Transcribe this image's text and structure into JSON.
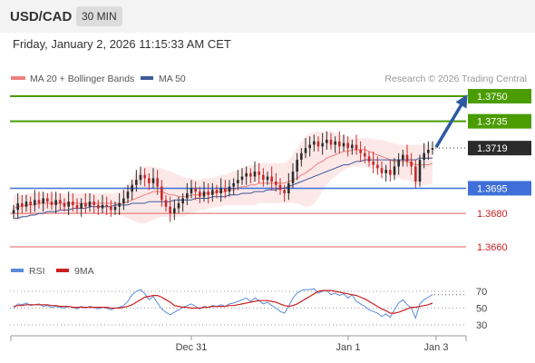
{
  "header": {
    "symbol": "USD/CAD",
    "timeframe": "30 MIN"
  },
  "datetime": "Friday, January 2, 2026 11:15:33 AM CET",
  "legend": {
    "ma20": "MA 20 + Bollinger Bands",
    "ma50": "MA 50",
    "credit": "Research © 2026 Trading Central"
  },
  "rsi_legend": {
    "rsi": "RSI",
    "ma": "9MA"
  },
  "colors": {
    "up": "#2b2b2b",
    "down": "#c62828",
    "ma20": "#f08080",
    "bands": "#fde4e4",
    "ma50": "#3d5a99",
    "resistance": "#4a9c00",
    "support_blue": "#3f6fd8",
    "support_red": "#e06060",
    "rsi": "#5b8bd9",
    "rsi_ma": "#cc2020",
    "arrow": "#2c5aa0"
  },
  "chart_data": {
    "type": "candlestick",
    "x_ticks": [
      "Dec 31",
      "Jan 1",
      "Jan 3"
    ],
    "y_range": [
      1.365,
      1.376
    ],
    "levels": [
      {
        "label": "1.3750",
        "value": 1.375,
        "type": "resistance"
      },
      {
        "label": "1.3735",
        "value": 1.3735,
        "type": "resistance"
      },
      {
        "label": "1.3719",
        "value": 1.3719,
        "type": "last"
      },
      {
        "label": "1.3695",
        "value": 1.3695,
        "type": "pivot"
      },
      {
        "label": "1.3680",
        "value": 1.368,
        "type": "support"
      },
      {
        "label": "1.3660",
        "value": 1.366,
        "type": "support"
      }
    ],
    "close": [
      1.3682,
      1.3686,
      1.3684,
      1.3687,
      1.3685,
      1.3688,
      1.3686,
      1.3689,
      1.3687,
      1.3685,
      1.3688,
      1.3686,
      1.3684,
      1.3687,
      1.3685,
      1.3683,
      1.3686,
      1.3684,
      1.3687,
      1.3685,
      1.3683,
      1.3685,
      1.3684,
      1.3682,
      1.3684,
      1.3686,
      1.3689,
      1.3693,
      1.3697,
      1.37,
      1.3703,
      1.3701,
      1.3698,
      1.3701,
      1.3696,
      1.3688,
      1.3684,
      1.368,
      1.3683,
      1.3686,
      1.3689,
      1.3692,
      1.3695,
      1.3693,
      1.369,
      1.3693,
      1.3691,
      1.3694,
      1.3692,
      1.3695,
      1.3693,
      1.3696,
      1.3698,
      1.37,
      1.3702,
      1.3704,
      1.3702,
      1.3705,
      1.3703,
      1.37,
      1.3702,
      1.3699,
      1.3697,
      1.3694,
      1.3692,
      1.3698,
      1.3705,
      1.3712,
      1.3716,
      1.3719,
      1.3721,
      1.3723,
      1.372,
      1.3722,
      1.3724,
      1.3721,
      1.3723,
      1.372,
      1.3722,
      1.3719,
      1.3721,
      1.3718,
      1.3716,
      1.3714,
      1.3711,
      1.3709,
      1.3707,
      1.3704,
      1.3706,
      1.3703,
      1.3708,
      1.3712,
      1.3715,
      1.3711,
      1.3708,
      1.3699,
      1.3712,
      1.3716,
      1.3718,
      1.3719
    ],
    "ma20": [
      1.3683,
      1.3684,
      1.3684,
      1.3685,
      1.3685,
      1.3685,
      1.3686,
      1.3686,
      1.3686,
      1.3686,
      1.3686,
      1.3686,
      1.3686,
      1.3686,
      1.3686,
      1.3686,
      1.3686,
      1.3686,
      1.3686,
      1.3686,
      1.3686,
      1.3686,
      1.3686,
      1.3686,
      1.3686,
      1.3686,
      1.3686,
      1.3687,
      1.3688,
      1.3689,
      1.369,
      1.3691,
      1.3692,
      1.3693,
      1.3693,
      1.3693,
      1.3692,
      1.3691,
      1.3691,
      1.369,
      1.369,
      1.369,
      1.3691,
      1.3691,
      1.3691,
      1.3692,
      1.3692,
      1.3692,
      1.3693,
      1.3693,
      1.3693,
      1.3694,
      1.3694,
      1.3695,
      1.3696,
      1.3696,
      1.3697,
      1.3697,
      1.3698,
      1.3698,
      1.3698,
      1.3698,
      1.3698,
      1.3698,
      1.3698,
      1.3699,
      1.37,
      1.3701,
      1.3703,
      1.3704,
      1.3706,
      1.3708,
      1.371,
      1.3711,
      1.3713,
      1.3714,
      1.3715,
      1.3716,
      1.3717,
      1.3717,
      1.3718,
      1.3718,
      1.3718,
      1.3718,
      1.3717,
      1.3716,
      1.3715,
      1.3714,
      1.3713,
      1.3712,
      1.3711,
      1.3711,
      1.3711,
      1.3711,
      1.371,
      1.3709,
      1.3709,
      1.3709,
      1.3709,
      1.371
    ],
    "band_upper": [
      1.3691,
      1.3691,
      1.3691,
      1.3692,
      1.3692,
      1.3692,
      1.3692,
      1.3692,
      1.3692,
      1.3692,
      1.3692,
      1.3692,
      1.3692,
      1.3692,
      1.3692,
      1.3692,
      1.3692,
      1.3692,
      1.3692,
      1.3692,
      1.3692,
      1.3692,
      1.3692,
      1.3692,
      1.3692,
      1.3693,
      1.3695,
      1.3698,
      1.3701,
      1.3704,
      1.3707,
      1.3708,
      1.3708,
      1.3708,
      1.3707,
      1.3707,
      1.3706,
      1.3705,
      1.3704,
      1.3703,
      1.3702,
      1.3701,
      1.3701,
      1.37,
      1.37,
      1.3701,
      1.3701,
      1.3701,
      1.3702,
      1.3703,
      1.3703,
      1.3704,
      1.3705,
      1.3706,
      1.3707,
      1.3708,
      1.3709,
      1.3709,
      1.371,
      1.371,
      1.371,
      1.371,
      1.371,
      1.371,
      1.371,
      1.3712,
      1.3715,
      1.3719,
      1.3723,
      1.3726,
      1.3728,
      1.3729,
      1.3729,
      1.3729,
      1.3729,
      1.3729,
      1.3728,
      1.3727,
      1.3727,
      1.3726,
      1.3725,
      1.3725,
      1.3725,
      1.3725,
      1.3725,
      1.3724,
      1.3724,
      1.3724,
      1.3723,
      1.3722,
      1.3722,
      1.3721,
      1.3721,
      1.3721,
      1.3721,
      1.3721,
      1.3721,
      1.3721,
      1.3721,
      1.3721
    ],
    "band_lower": [
      1.3675,
      1.3676,
      1.3677,
      1.3678,
      1.3678,
      1.3679,
      1.3679,
      1.3679,
      1.368,
      1.368,
      1.368,
      1.368,
      1.368,
      1.368,
      1.368,
      1.368,
      1.368,
      1.368,
      1.368,
      1.368,
      1.368,
      1.368,
      1.368,
      1.368,
      1.368,
      1.3679,
      1.3678,
      1.3677,
      1.3676,
      1.3675,
      1.3674,
      1.3674,
      1.3675,
      1.3676,
      1.3677,
      1.3678,
      1.3678,
      1.3678,
      1.3678,
      1.3678,
      1.3678,
      1.3679,
      1.368,
      1.3681,
      1.3682,
      1.3682,
      1.3683,
      1.3683,
      1.3684,
      1.3684,
      1.3685,
      1.3685,
      1.3685,
      1.3685,
      1.3685,
      1.3685,
      1.3685,
      1.3685,
      1.3686,
      1.3686,
      1.3686,
      1.3686,
      1.3686,
      1.3686,
      1.3686,
      1.3686,
      1.3686,
      1.3686,
      1.3685,
      1.3684,
      1.3684,
      1.3686,
      1.3689,
      1.3693,
      1.3697,
      1.37,
      1.3702,
      1.3704,
      1.3706,
      1.3707,
      1.3708,
      1.3708,
      1.3708,
      1.3708,
      1.3707,
      1.3707,
      1.3706,
      1.3705,
      1.3704,
      1.3703,
      1.3702,
      1.3701,
      1.37,
      1.37,
      1.3699,
      1.3697,
      1.3697,
      1.3697,
      1.3697,
      1.3698
    ],
    "ma50": [
      1.3677,
      1.3677,
      1.3678,
      1.3678,
      1.3679,
      1.3679,
      1.368,
      1.368,
      1.3681,
      1.3681,
      1.3681,
      1.3682,
      1.3682,
      1.3682,
      1.3683,
      1.3683,
      1.3683,
      1.3683,
      1.3684,
      1.3684,
      1.3684,
      1.3684,
      1.3684,
      1.3684,
      1.3685,
      1.3685,
      1.3685,
      1.3685,
      1.3686,
      1.3686,
      1.3686,
      1.3686,
      1.3687,
      1.3687,
      1.3687,
      1.3687,
      1.3687,
      1.3687,
      1.3688,
      1.3688,
      1.3688,
      1.3688,
      1.3688,
      1.3689,
      1.3689,
      1.3689,
      1.3689,
      1.369,
      1.369,
      1.369,
      1.369,
      1.3691,
      1.3691,
      1.3691,
      1.3692,
      1.3692,
      1.3692,
      1.3693,
      1.3693,
      1.3693,
      1.3694,
      1.3694,
      1.3694,
      1.3695,
      1.3695,
      1.3696,
      1.3697,
      1.3698,
      1.3699,
      1.37,
      1.3701,
      1.3702,
      1.3703,
      1.3704,
      1.3705,
      1.3706,
      1.3707,
      1.3708,
      1.3709,
      1.3709,
      1.371,
      1.3711,
      1.3711,
      1.3712,
      1.3712,
      1.3712,
      1.3712,
      1.3712,
      1.3712,
      1.3712,
      1.3712,
      1.3712,
      1.3712,
      1.3712,
      1.3712,
      1.3712,
      1.3713,
      1.3713,
      1.3713,
      1.3713
    ],
    "rsi_ticks": [
      "70",
      "50",
      "30"
    ],
    "rsi_range": [
      20,
      80
    ],
    "rsi": [
      50,
      55,
      54,
      56,
      53,
      54,
      55,
      52,
      53,
      51,
      52,
      51,
      50,
      52,
      51,
      49,
      52,
      50,
      52,
      51,
      49,
      51,
      50,
      48,
      50,
      51,
      53,
      58,
      66,
      70,
      72,
      67,
      60,
      64,
      56,
      49,
      45,
      42,
      45,
      48,
      51,
      53,
      55,
      52,
      49,
      52,
      51,
      53,
      52,
      54,
      52,
      55,
      56,
      58,
      60,
      62,
      58,
      62,
      59,
      55,
      57,
      53,
      50,
      46,
      44,
      52,
      62,
      68,
      71,
      72,
      72,
      73,
      68,
      70,
      71,
      66,
      68,
      65,
      67,
      62,
      66,
      58,
      55,
      52,
      48,
      46,
      44,
      40,
      43,
      39,
      48,
      56,
      60,
      54,
      50,
      38,
      55,
      60,
      63,
      66
    ],
    "rsi_ma": [
      52,
      53,
      53,
      54,
      54,
      54,
      54,
      54,
      54,
      53,
      53,
      52,
      52,
      52,
      51,
      51,
      51,
      51,
      51,
      51,
      51,
      51,
      51,
      50,
      50,
      50,
      51,
      52,
      54,
      57,
      60,
      63,
      64,
      65,
      65,
      63,
      60,
      57,
      53,
      52,
      51,
      51,
      50,
      50,
      50,
      51,
      51,
      52,
      52,
      52,
      52,
      53,
      53,
      54,
      55,
      56,
      57,
      58,
      59,
      59,
      59,
      58,
      57,
      55,
      53,
      52,
      53,
      55,
      58,
      61,
      64,
      67,
      70,
      71,
      71,
      71,
      70,
      69,
      68,
      67,
      66,
      65,
      63,
      61,
      58,
      55,
      52,
      49,
      47,
      44,
      44,
      45,
      47,
      49,
      51,
      51,
      52,
      53,
      54,
      56
    ]
  }
}
